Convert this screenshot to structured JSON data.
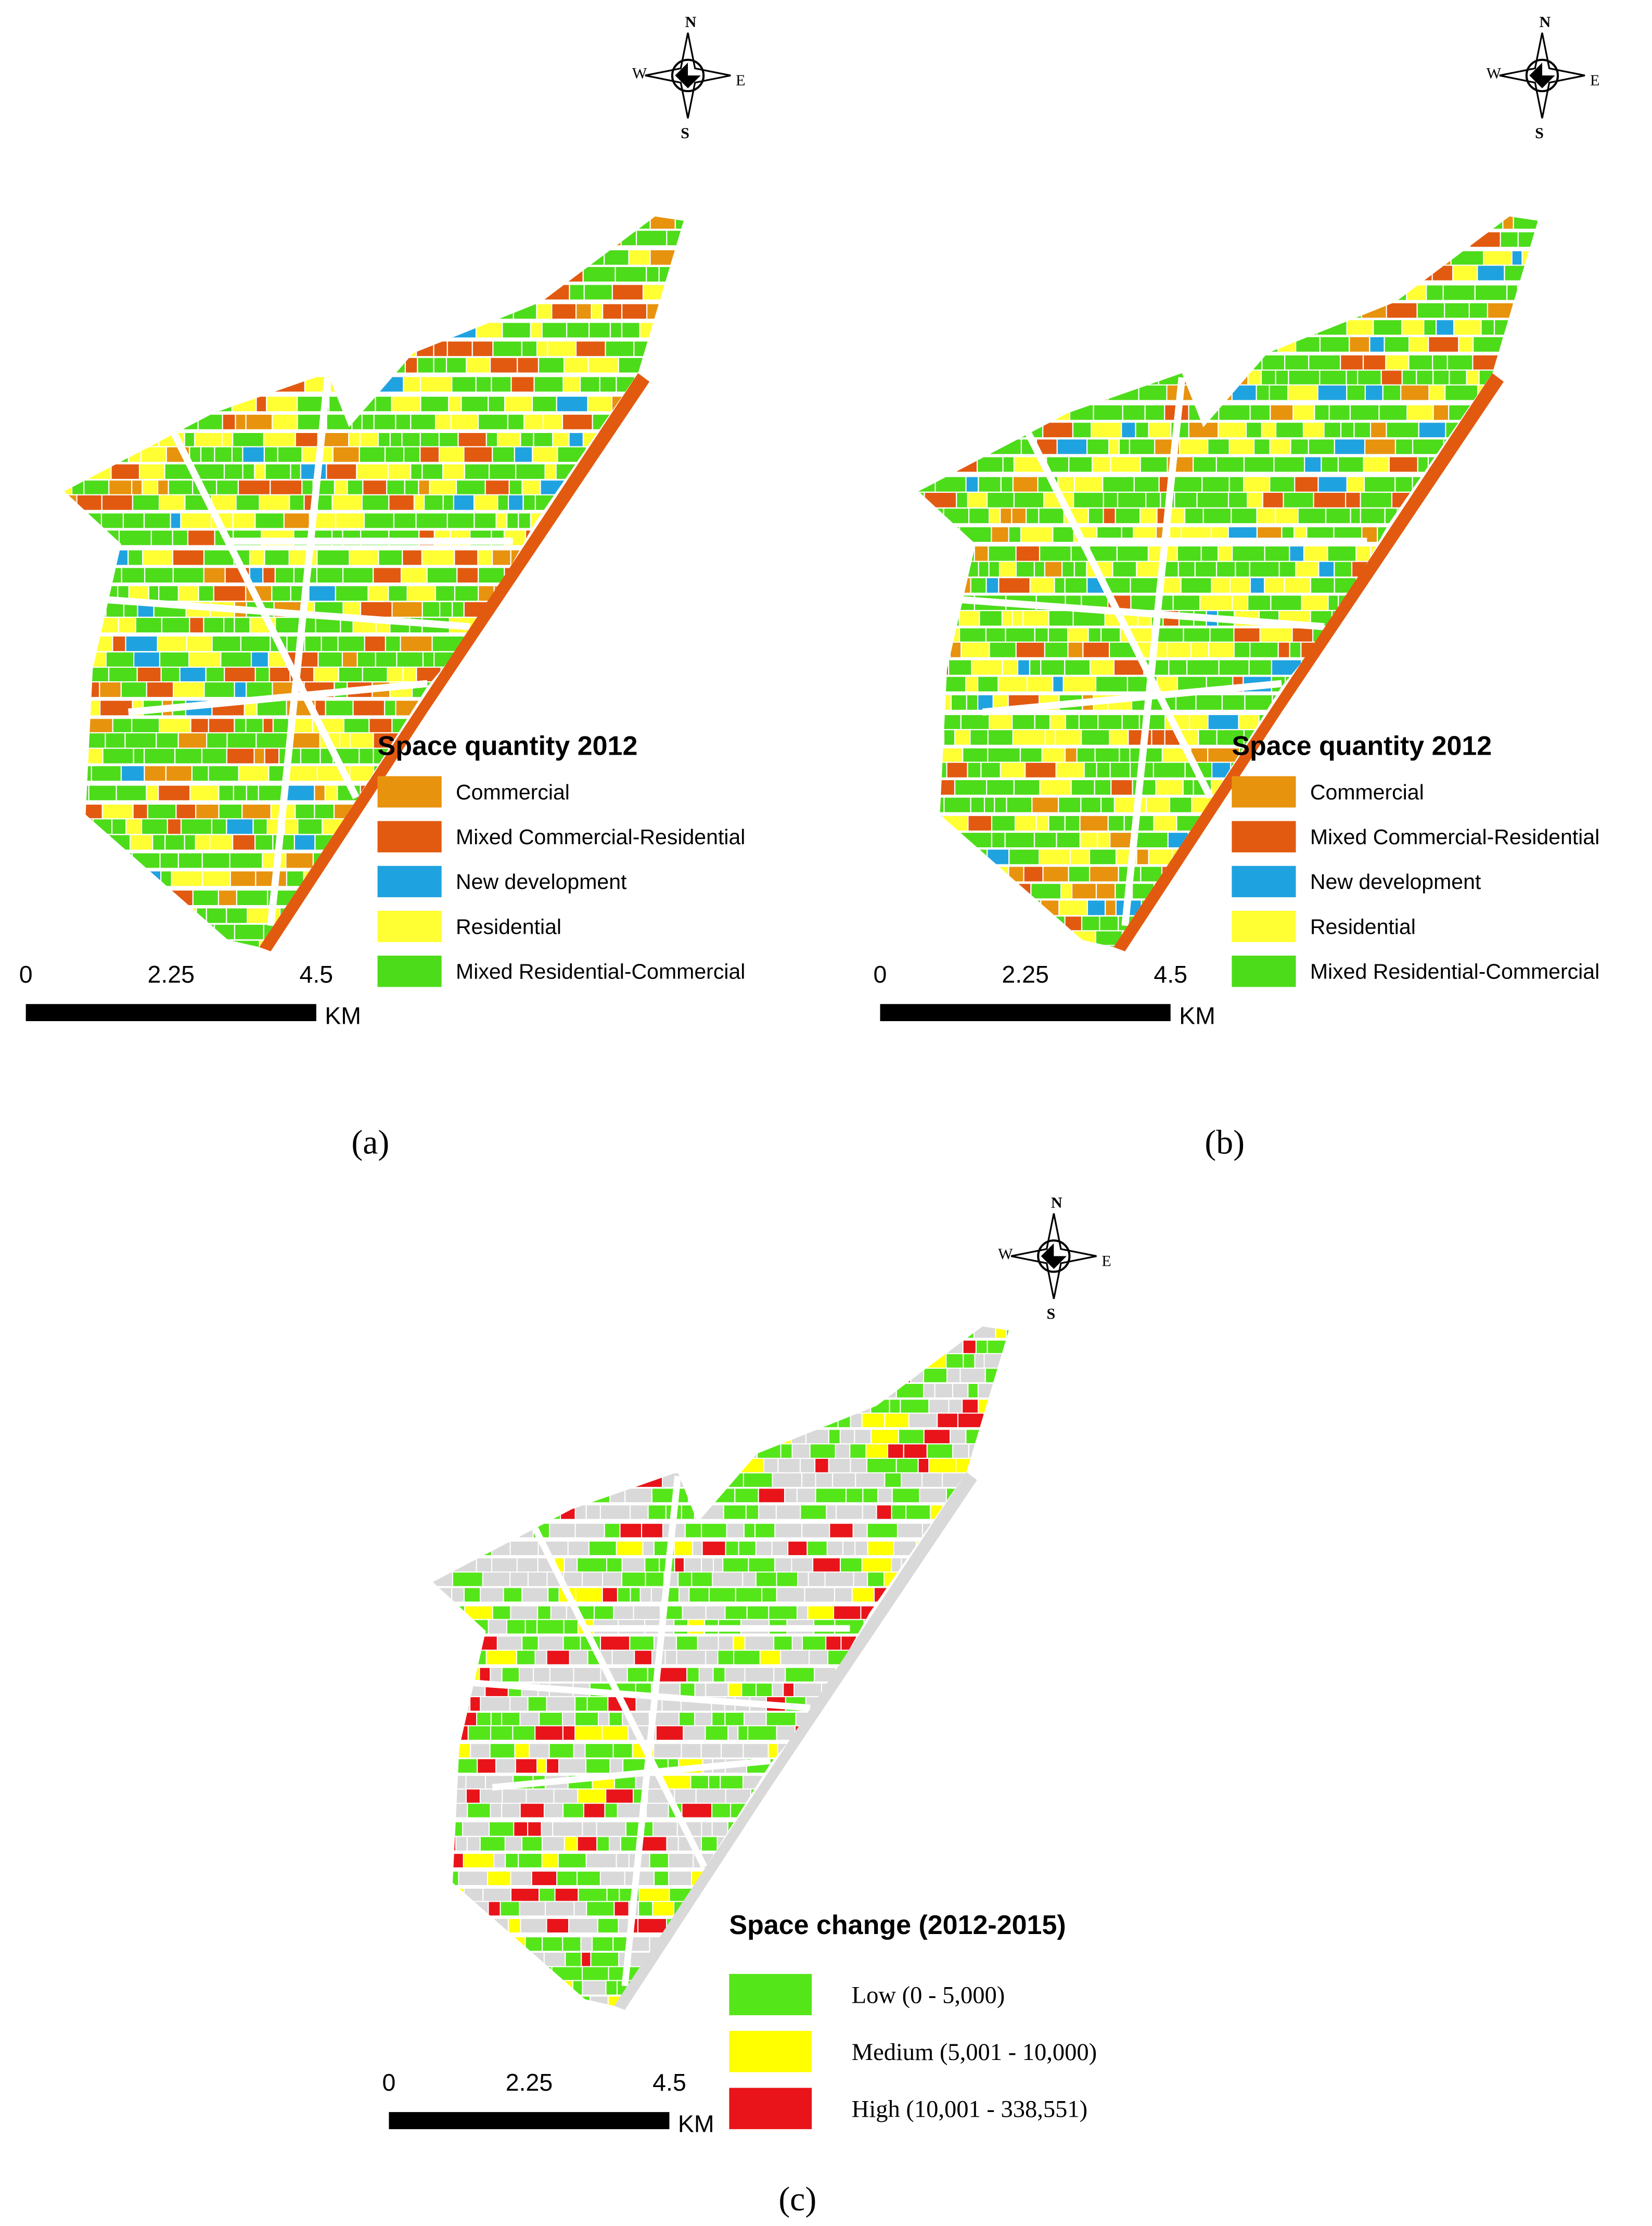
{
  "panels": [
    {
      "caption": "(a)",
      "compass": {
        "n": "N",
        "s": "S",
        "w": "W",
        "e": "E"
      },
      "legend": {
        "title": "Space quantity 2012",
        "items": [
          {
            "label": "Commercial",
            "color": "#e8930e"
          },
          {
            "label": "Mixed Commercial-Residential",
            "color": "#e25a10"
          },
          {
            "label": "New development",
            "color": "#1fa3e0"
          },
          {
            "label": "Residential",
            "color": "#ffff33"
          },
          {
            "label": "Mixed Residential-Commercial",
            "color": "#4ddc1a"
          }
        ]
      },
      "scale_bar": {
        "ticks": [
          0,
          2.25,
          4.5
        ],
        "unit": "KM"
      }
    },
    {
      "caption": "(b)",
      "compass": {
        "n": "N",
        "s": "S",
        "w": "W",
        "e": "E"
      },
      "legend": {
        "title": "Space quantity 2012",
        "items": [
          {
            "label": "Commercial",
            "color": "#e8930e"
          },
          {
            "label": "Mixed Commercial-Residential",
            "color": "#e25a10"
          },
          {
            "label": "New development",
            "color": "#1fa3e0"
          },
          {
            "label": "Residential",
            "color": "#ffff33"
          },
          {
            "label": "Mixed Residential-Commercial",
            "color": "#4ddc1a"
          }
        ]
      },
      "scale_bar": {
        "ticks": [
          0,
          2.25,
          4.5
        ],
        "unit": "KM"
      }
    },
    {
      "caption": "(c)",
      "compass": {
        "n": "N",
        "s": "S",
        "w": "W",
        "e": "E"
      },
      "legend": {
        "title": "Space change (2012-2015)",
        "items": [
          {
            "label": "Low (0 - 5,000)",
            "color": "#55e61a"
          },
          {
            "label": "Medium (5,001 - 10,000)",
            "color": "#ffff00"
          },
          {
            "label": "High (10,001 - 338,551)",
            "color": "#e8141a"
          }
        ]
      },
      "scale_bar": {
        "ticks": [
          0,
          2.25,
          4.5
        ],
        "unit": "KM"
      }
    }
  ]
}
